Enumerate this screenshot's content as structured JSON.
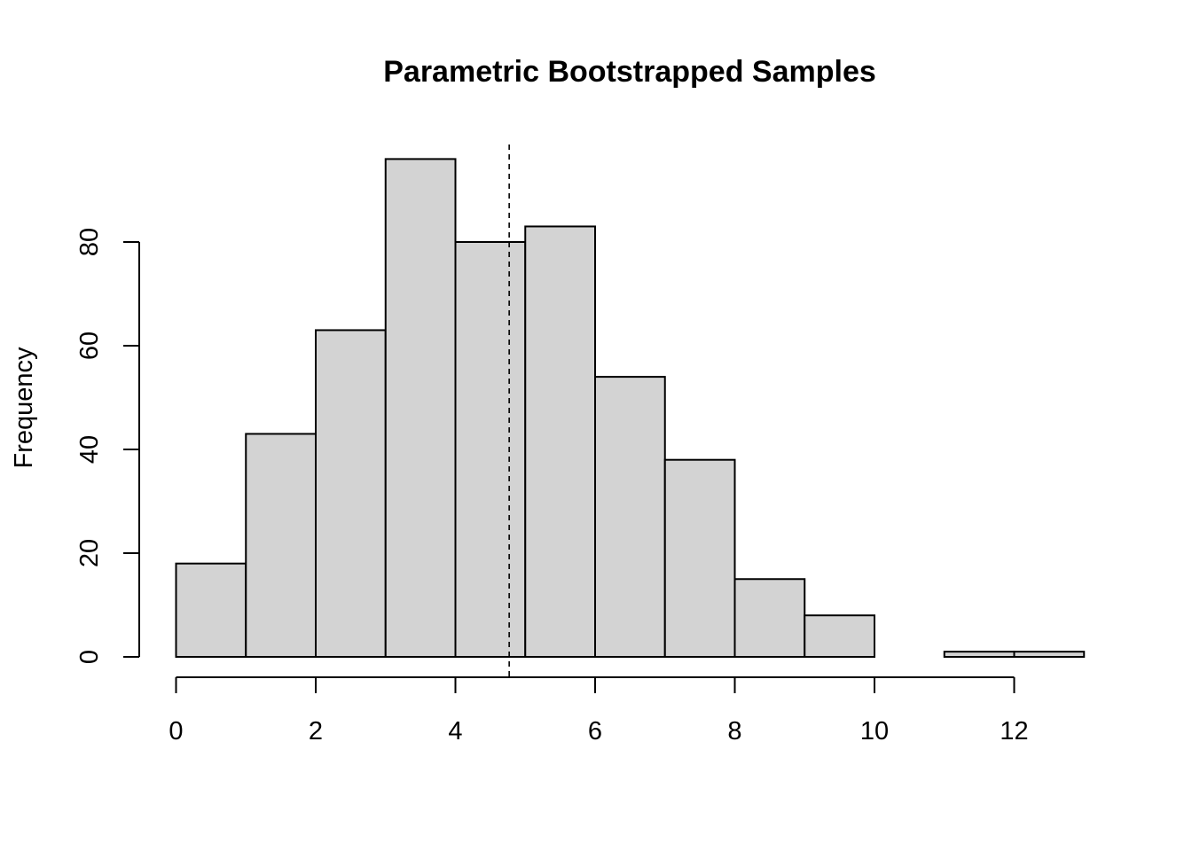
{
  "chart_data": {
    "type": "bar",
    "title": "Parametric Bootstrapped Samples",
    "xlabel": "",
    "ylabel": "Frequency",
    "bins": [
      {
        "start": 0,
        "end": 1,
        "count": 18
      },
      {
        "start": 1,
        "end": 2,
        "count": 43
      },
      {
        "start": 2,
        "end": 3,
        "count": 63
      },
      {
        "start": 3,
        "end": 4,
        "count": 96
      },
      {
        "start": 4,
        "end": 5,
        "count": 80
      },
      {
        "start": 5,
        "end": 6,
        "count": 83
      },
      {
        "start": 6,
        "end": 7,
        "count": 54
      },
      {
        "start": 7,
        "end": 8,
        "count": 38
      },
      {
        "start": 8,
        "end": 9,
        "count": 15
      },
      {
        "start": 9,
        "end": 10,
        "count": 8
      },
      {
        "start": 10,
        "end": 11,
        "count": 0
      },
      {
        "start": 11,
        "end": 12,
        "count": 1
      },
      {
        "start": 12,
        "end": 13,
        "count": 1
      }
    ],
    "xlim": [
      0,
      13
    ],
    "ylim": [
      0,
      96
    ],
    "x_ticks": [
      0,
      2,
      4,
      6,
      8,
      10,
      12
    ],
    "y_ticks": [
      0,
      20,
      40,
      60,
      80
    ],
    "reference_line": {
      "x": 4.77,
      "style": "dashed"
    },
    "bar_fill": "#d3d3d3",
    "bar_stroke": "#000000",
    "grid": false,
    "legend": "none"
  }
}
